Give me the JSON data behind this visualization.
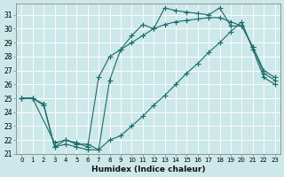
{
  "xlabel": "Humidex (Indice chaleur)",
  "xlim": [
    -0.5,
    23.5
  ],
  "ylim": [
    21,
    31.8
  ],
  "yticks": [
    21,
    22,
    23,
    24,
    25,
    26,
    27,
    28,
    29,
    30,
    31
  ],
  "xticks": [
    0,
    1,
    2,
    3,
    4,
    5,
    6,
    7,
    8,
    9,
    10,
    11,
    12,
    13,
    14,
    15,
    16,
    17,
    18,
    19,
    20,
    21,
    22,
    23
  ],
  "bg_color": "#cce8e8",
  "line_color": "#1a6b6b",
  "grid_color": "#b8d8d8",
  "line1_x": [
    0,
    1,
    3,
    4,
    5,
    6,
    7,
    8,
    9,
    10,
    11,
    12,
    13,
    14,
    15,
    16,
    17,
    18,
    19,
    20,
    21,
    22,
    23
  ],
  "line1_y": [
    25,
    25,
    21.8,
    22.0,
    21.7,
    21.7,
    21.3,
    26.3,
    28.5,
    29.5,
    30.3,
    30.0,
    31.5,
    31.3,
    31.2,
    31.1,
    31.0,
    31.5,
    30.2,
    30.2,
    28.7,
    26.8,
    26.3
  ],
  "line2_x": [
    0,
    1,
    2,
    3,
    4,
    5,
    6,
    7,
    8,
    9,
    10,
    11,
    12,
    13,
    14,
    15,
    16,
    17,
    18,
    19,
    20,
    21,
    22,
    23
  ],
  "line2_y": [
    25.0,
    25.0,
    24.6,
    21.5,
    22.0,
    21.8,
    21.5,
    26.5,
    28.0,
    28.5,
    29.0,
    29.5,
    30.0,
    30.3,
    30.5,
    30.6,
    30.7,
    30.8,
    30.8,
    30.5,
    30.2,
    28.7,
    27.0,
    26.5
  ],
  "line3_x": [
    0,
    1,
    2,
    3,
    4,
    5,
    6,
    7,
    8,
    9,
    10,
    11,
    12,
    13,
    14,
    15,
    16,
    17,
    18,
    19,
    20,
    21,
    22,
    23
  ],
  "line3_y": [
    25.0,
    25.0,
    24.5,
    21.5,
    21.7,
    21.5,
    21.3,
    21.3,
    22.0,
    22.3,
    23.0,
    23.7,
    24.5,
    25.2,
    26.0,
    26.8,
    27.5,
    28.3,
    29.0,
    29.8,
    30.5,
    28.5,
    26.5,
    26.0
  ]
}
